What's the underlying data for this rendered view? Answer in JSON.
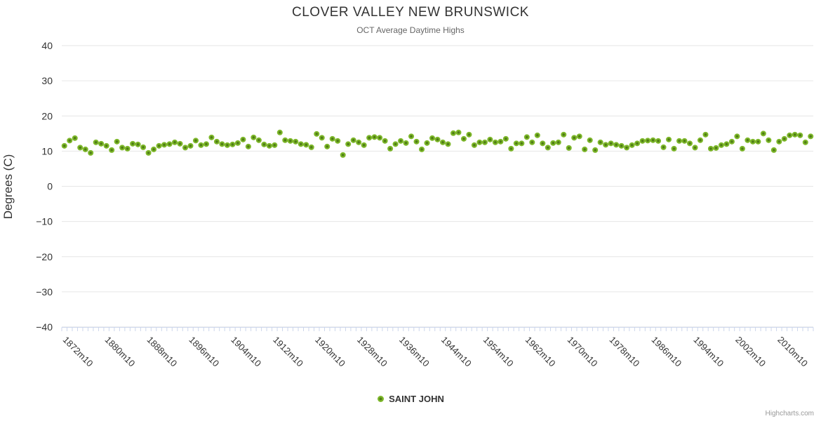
{
  "chart_data": {
    "type": "scatter",
    "title": "CLOVER VALLEY NEW BRUNSWICK",
    "subtitle": "OCT Average Daytime Highs",
    "ylabel": "Degrees (C)",
    "xlabel": "",
    "ylim": [
      -40,
      40
    ],
    "yticks": [
      40,
      30,
      20,
      10,
      0,
      -10,
      -20,
      -30,
      -40
    ],
    "ytick_labels": [
      "40",
      "30",
      "20",
      "10",
      "0",
      "−10",
      "−20",
      "−30",
      "−40"
    ],
    "grid": true,
    "legend_position": "bottom-center",
    "x_label_every": 8,
    "x_label_rotation_deg": 45,
    "x_categories": [
      "1872m10",
      "1873m10",
      "1874m10",
      "1875m10",
      "1876m10",
      "1877m10",
      "1878m10",
      "1879m10",
      "1880m10",
      "1881m10",
      "1882m10",
      "1883m10",
      "1884m10",
      "1885m10",
      "1886m10",
      "1887m10",
      "1888m10",
      "1889m10",
      "1890m10",
      "1891m10",
      "1892m10",
      "1893m10",
      "1894m10",
      "1895m10",
      "1896m10",
      "1897m10",
      "1898m10",
      "1899m10",
      "1900m10",
      "1901m10",
      "1902m10",
      "1903m10",
      "1904m10",
      "1905m10",
      "1906m10",
      "1907m10",
      "1908m10",
      "1909m10",
      "1910m10",
      "1911m10",
      "1912m10",
      "1913m10",
      "1914m10",
      "1915m10",
      "1916m10",
      "1917m10",
      "1918m10",
      "1919m10",
      "1920m10",
      "1921m10",
      "1922m10",
      "1923m10",
      "1924m10",
      "1925m10",
      "1926m10",
      "1927m10",
      "1928m10",
      "1929m10",
      "1930m10",
      "1931m10",
      "1932m10",
      "1933m10",
      "1934m10",
      "1935m10",
      "1936m10",
      "1937m10",
      "1938m10",
      "1939m10",
      "1940m10",
      "1941m10",
      "1942m10",
      "1943m10",
      "1944m10",
      "1947m10",
      "1948m10",
      "1949m10",
      "1950m10",
      "1951m10",
      "1952m10",
      "1953m10",
      "1954m10",
      "1955m10",
      "1956m10",
      "1957m10",
      "1958m10",
      "1959m10",
      "1960m10",
      "1961m10",
      "1962m10",
      "1963m10",
      "1964m10",
      "1965m10",
      "1966m10",
      "1967m10",
      "1968m10",
      "1969m10",
      "1970m10",
      "1971m10",
      "1972m10",
      "1973m10",
      "1974m10",
      "1975m10",
      "1976m10",
      "1977m10",
      "1978m10",
      "1979m10",
      "1980m10",
      "1981m10",
      "1982m10",
      "1983m10",
      "1984m10",
      "1985m10",
      "1986m10",
      "1987m10",
      "1988m10",
      "1989m10",
      "1990m10",
      "1991m10",
      "1992m10",
      "1993m10",
      "1994m10",
      "1995m10",
      "1996m10",
      "1997m10",
      "1998m10",
      "1999m10",
      "2000m10",
      "2001m10",
      "2002m10",
      "2003m10",
      "2004m10",
      "2005m10",
      "2006m10",
      "2007m10",
      "2008m10",
      "2009m10",
      "2010m10",
      "2011m10",
      "2012m10",
      "2013m10",
      "2014m10",
      "2015m10",
      "2016m10"
    ],
    "series": [
      {
        "name": "SAINT JOHN",
        "marker_color": "#7db72a",
        "marker_center_color": "#4f7d15",
        "values": [
          11.5,
          13,
          13.7,
          11,
          10.5,
          9.5,
          12.5,
          12.1,
          11.5,
          10.3,
          12.7,
          11,
          10.7,
          12.1,
          11.9,
          11.1,
          9.5,
          10.5,
          11.5,
          11.8,
          12,
          12.5,
          12.1,
          11,
          11.5,
          13,
          11.7,
          12,
          13.9,
          12.7,
          12,
          11.7,
          11.9,
          12.3,
          13.3,
          11.3,
          13.9,
          13.1,
          11.9,
          11.5,
          11.7,
          15.3,
          13.1,
          12.9,
          12.7,
          12,
          11.8,
          11.1,
          14.9,
          13.8,
          11.3,
          13.5,
          12.9,
          8.9,
          12,
          13.1,
          12.5,
          11.7,
          13.8,
          14,
          13.8,
          12.9,
          10.7,
          12,
          12.9,
          12.3,
          14.2,
          12.7,
          10.5,
          12.3,
          13.7,
          13.3,
          12.5,
          12,
          15.1,
          15.3,
          13.5,
          14.7,
          11.7,
          12.5,
          12.5,
          13.3,
          12.5,
          12.7,
          13.5,
          10.7,
          12.2,
          12.2,
          14,
          12.5,
          14.5,
          12.2,
          11,
          12.3,
          12.5,
          14.7,
          10.9,
          13.8,
          14.2,
          10.5,
          13.1,
          10.3,
          12.5,
          11.8,
          12.2,
          11.8,
          11.5,
          11,
          11.7,
          12.2,
          12.9,
          13,
          13.1,
          12.9,
          11.1,
          13.3,
          10.7,
          12.9,
          12.9,
          12.2,
          11,
          13.1,
          14.7,
          10.7,
          10.9,
          11.7,
          12,
          12.7,
          14.2,
          10.7,
          13.1,
          12.7,
          12.7,
          15,
          13.1,
          10.3,
          12.7,
          13.5,
          14.5,
          14.7,
          14.5,
          12.5,
          14.2
        ]
      }
    ],
    "credits": "Highcharts.com"
  },
  "colors": {
    "background": "#ffffff",
    "grid": "#e6e6e6",
    "axis": "#ccd6eb",
    "title_text": "#333333",
    "subtitle_text": "#666666",
    "axis_label_text": "#333333",
    "legend_text": "#333333",
    "credits_text": "#999999"
  }
}
